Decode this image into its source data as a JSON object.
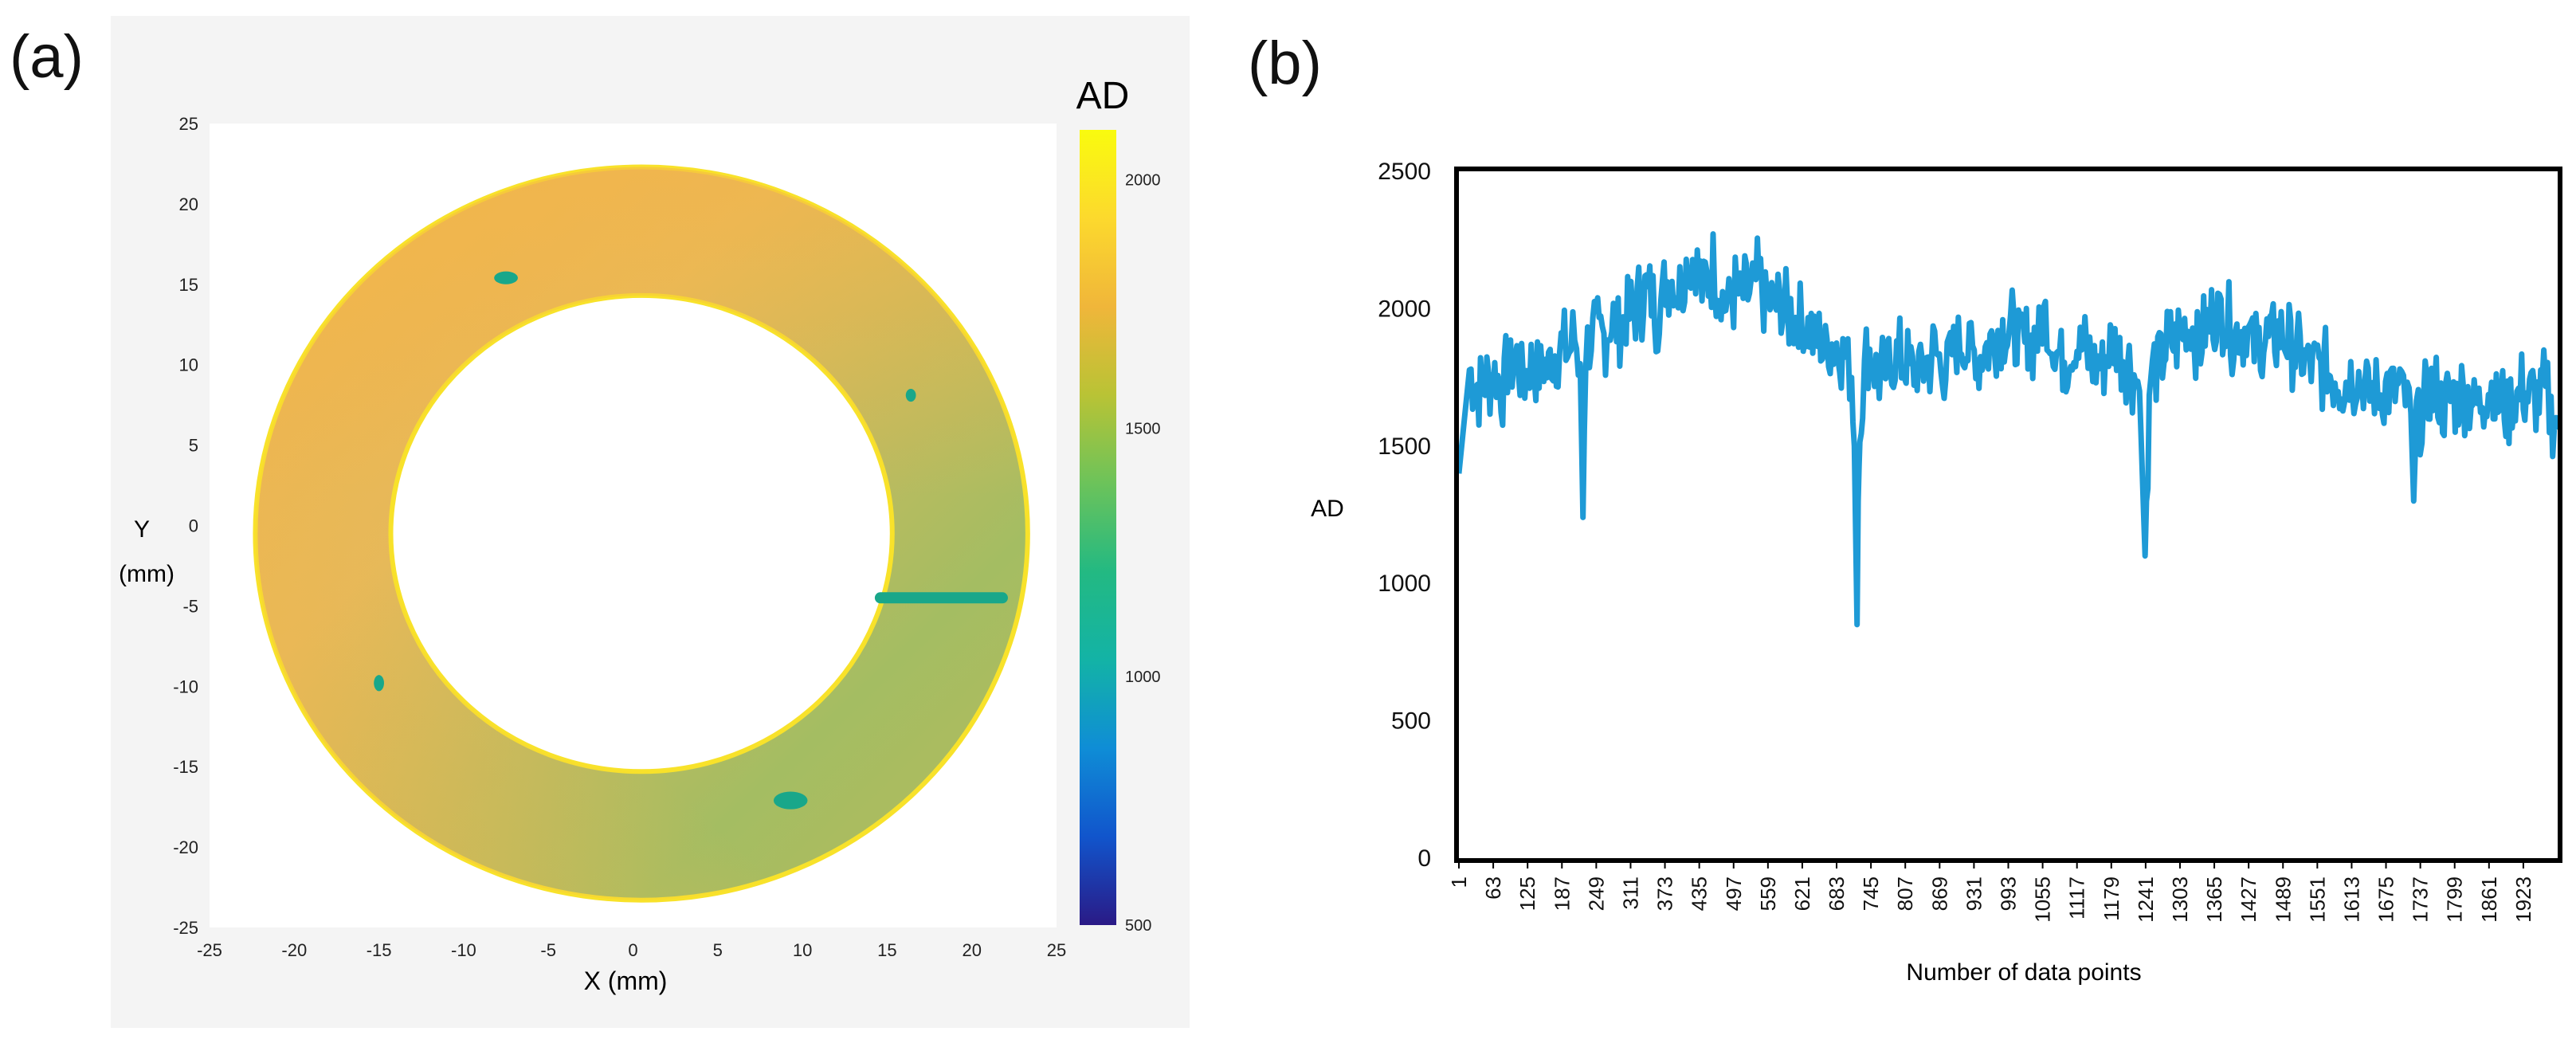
{
  "figure": {
    "panel_a_label": "(a)",
    "panel_b_label": "(b)"
  },
  "chart_data": [
    {
      "type": "heatmap",
      "title": "",
      "xlabel": "X (mm)",
      "ylabel": "Y",
      "ylabel_unit": "(mm)",
      "xlim": [
        -25,
        25
      ],
      "ylim": [
        -25,
        25
      ],
      "xticks": [
        "-25",
        "-20",
        "-15",
        "-10",
        "-5",
        "0",
        "5",
        "10",
        "15",
        "20",
        "25"
      ],
      "yticks": [
        "25",
        "20",
        "15",
        "10",
        "5",
        "0",
        "-5",
        "-10",
        "-15",
        "-20",
        "-25"
      ],
      "ring": {
        "center_mm": [
          0.5,
          -0.5
        ],
        "outer_radius_mm": 22.8,
        "inner_radius_mm": 14.8
      },
      "defects": [
        {
          "shape": "ellipse",
          "x_mm": -7.5,
          "y_mm": 15.4,
          "rx_mm": 0.7,
          "ry_mm": 0.4
        },
        {
          "shape": "ellipse",
          "x_mm": 16.4,
          "y_mm": 8.1,
          "rx_mm": 0.3,
          "ry_mm": 0.4
        },
        {
          "shape": "ellipse",
          "x_mm": -15.0,
          "y_mm": -9.8,
          "rx_mm": 0.3,
          "ry_mm": 0.5
        },
        {
          "shape": "ellipse",
          "x_mm": 9.3,
          "y_mm": -17.1,
          "rx_mm": 1.0,
          "ry_mm": 0.55
        },
        {
          "shape": "line",
          "x1_mm": 14.6,
          "x2_mm": 21.8,
          "y_mm": -4.5
        }
      ],
      "colorbar": {
        "title": "AD",
        "range": [
          500,
          2100
        ],
        "ticks": [
          "2000",
          "1500",
          "1000",
          "500"
        ],
        "tick_values": [
          2000,
          1500,
          1000,
          500
        ],
        "colors": [
          "#2a1a86",
          "#1155cc",
          "#0f8dd6",
          "#13b3a6",
          "#23b982",
          "#6cc35a",
          "#b9c335",
          "#f0b63a",
          "#fcd92d",
          "#f9fb0e"
        ]
      },
      "colors": {
        "ring_warm": "#f0b550",
        "ring_mid": "#c9b460",
        "ring_green": "#a3bd62",
        "defect": "#19a78a",
        "rim": "#f8e22a"
      }
    },
    {
      "type": "line",
      "title": "",
      "xlabel": "Number of data points",
      "ylabel": "AD",
      "ylim": [
        0,
        2500
      ],
      "yticks": [
        "2500",
        "2000",
        "1500",
        "1000",
        "500",
        "0"
      ],
      "ytick_values": [
        2500,
        2000,
        1500,
        1000,
        500,
        0
      ],
      "xlim": [
        1,
        1985
      ],
      "xtick_values": [
        1,
        63,
        125,
        187,
        249,
        311,
        373,
        435,
        497,
        559,
        621,
        683,
        745,
        807,
        869,
        931,
        993,
        1055,
        1117,
        1179,
        1241,
        1303,
        1365,
        1427,
        1489,
        1551,
        1613,
        1675,
        1737,
        1799,
        1861,
        1923
      ],
      "xticks": [
        "1",
        "63",
        "125",
        "187",
        "249",
        "311",
        "373",
        "435",
        "497",
        "559",
        "621",
        "683",
        "745",
        "807",
        "869",
        "931",
        "993",
        "1055",
        "1117",
        "1179",
        "1241",
        "1303",
        "1365",
        "1427",
        "1489",
        "1551",
        "1613",
        "1675",
        "1737",
        "1799",
        "1861",
        "1923"
      ],
      "color": "#1e9ad6",
      "series": [
        {
          "name": "AD",
          "x": [
            1,
            20,
            40,
            60,
            80,
            100,
            120,
            140,
            160,
            180,
            200,
            210,
            220,
            225,
            230,
            240,
            260,
            280,
            300,
            320,
            340,
            360,
            380,
            400,
            420,
            440,
            460,
            480,
            500,
            520,
            540,
            560,
            580,
            600,
            620,
            640,
            660,
            680,
            700,
            710,
            715,
            720,
            722,
            725,
            730,
            740,
            760,
            780,
            800,
            820,
            840,
            860,
            880,
            900,
            920,
            940,
            960,
            980,
            1000,
            1020,
            1040,
            1060,
            1080,
            1100,
            1120,
            1140,
            1160,
            1180,
            1200,
            1220,
            1230,
            1235,
            1240,
            1245,
            1250,
            1260,
            1280,
            1300,
            1320,
            1340,
            1360,
            1380,
            1400,
            1420,
            1440,
            1460,
            1480,
            1500,
            1520,
            1540,
            1560,
            1580,
            1600,
            1620,
            1640,
            1660,
            1680,
            1700,
            1710,
            1720,
            1725,
            1730,
            1740,
            1760,
            1780,
            1800,
            1820,
            1840,
            1860,
            1880,
            1900,
            1920,
            1940,
            1960,
            1970,
            1985
          ],
          "y": [
            1400,
            1780,
            1700,
            1760,
            1720,
            1830,
            1760,
            1800,
            1780,
            1860,
            1840,
            1900,
            1800,
            1240,
            1870,
            1920,
            1890,
            1960,
            1940,
            2010,
            2060,
            1980,
            2120,
            2060,
            2200,
            2080,
            2150,
            2010,
            2060,
            2040,
            2100,
            2020,
            2000,
            1980,
            1940,
            1900,
            1860,
            1880,
            1830,
            1780,
            1500,
            850,
            1300,
            1550,
            1720,
            1860,
            1760,
            1800,
            1820,
            1760,
            1790,
            1840,
            1780,
            1900,
            1860,
            1820,
            1880,
            1940,
            1920,
            1860,
            1890,
            1960,
            1840,
            1830,
            1880,
            1820,
            1800,
            1860,
            1840,
            1760,
            1700,
            1400,
            1100,
            1500,
            1760,
            1800,
            1860,
            1900,
            1940,
            1880,
            1960,
            1990,
            1900,
            1930,
            1860,
            1880,
            1900,
            1880,
            1820,
            1800,
            1780,
            1760,
            1730,
            1760,
            1700,
            1680,
            1720,
            1700,
            1680,
            1620,
            1300,
            1600,
            1640,
            1700,
            1660,
            1680,
            1700,
            1650,
            1720,
            1660,
            1640,
            1700,
            1680,
            1700,
            1650,
            1560
          ]
        }
      ]
    }
  ]
}
